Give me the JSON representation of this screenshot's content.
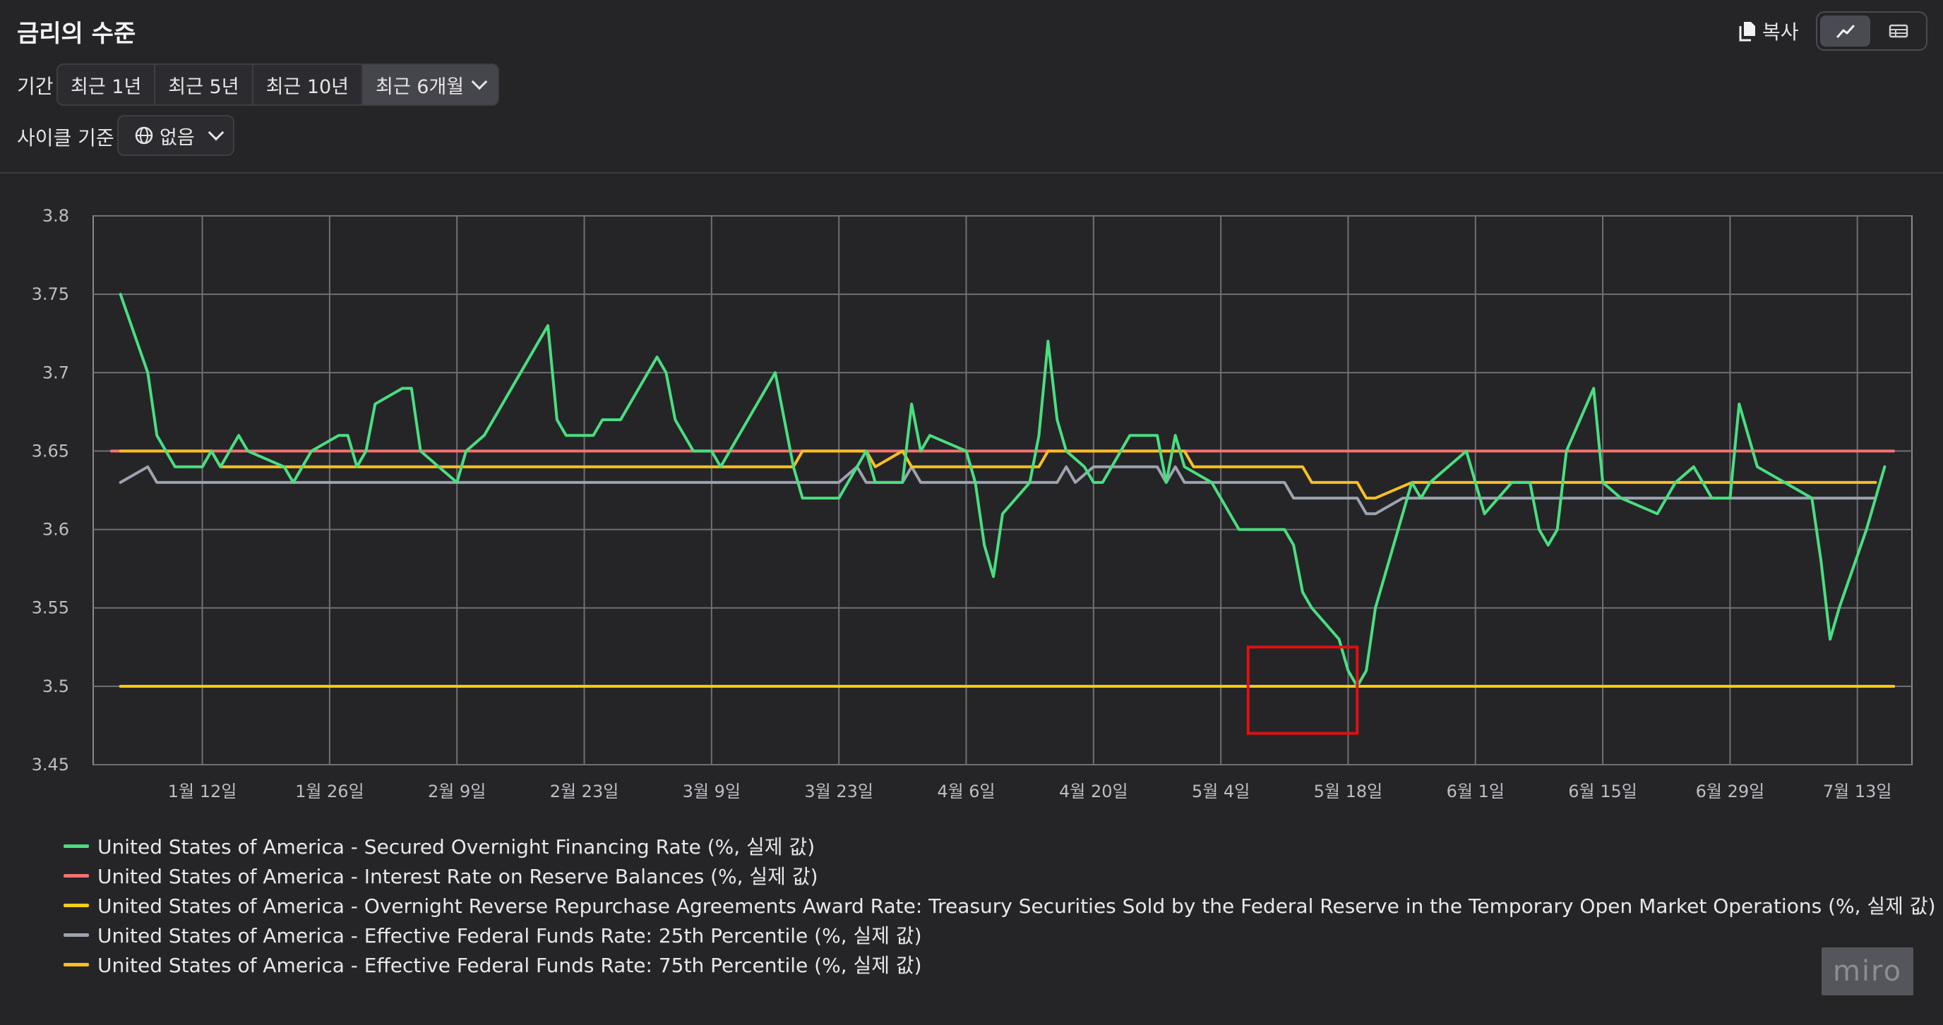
{
  "header": {
    "title": "금리의 수준",
    "copy_label": "복사"
  },
  "period": {
    "label": "기간",
    "options": [
      "최근 1년",
      "최근 5년",
      "최근 10년",
      "최근 6개월"
    ],
    "selected": "최근 6개월"
  },
  "cycle": {
    "label": "사이클 기준",
    "value": "없음"
  },
  "colors": {
    "sofr": "#4ade80",
    "iorb": "#f87171",
    "onrrp": "#facc15",
    "p25": "#9ca3af",
    "p75": "#fbbf24",
    "highlight_box": "#e01010"
  },
  "chart_data": {
    "type": "line",
    "x_tick_labels": [
      "1월 12일",
      "1월 26일",
      "2월 9일",
      "2월 23일",
      "3월 9일",
      "3월 23일",
      "4월 6일",
      "4월 20일",
      "5월 4일",
      "5월 18일",
      "6월 1일",
      "6월 15일",
      "6월 29일",
      "7월 13일"
    ],
    "x_tick_days": [
      12,
      26,
      40,
      54,
      68,
      82,
      96,
      110,
      124,
      138,
      152,
      166,
      180,
      194
    ],
    "x_range_days": [
      0,
      200
    ],
    "ylim": [
      3.45,
      3.8
    ],
    "y_ticks": [
      "3.8",
      "3.75",
      "3.7",
      "3.65",
      "3.6",
      "3.55",
      "3.5",
      "3.45"
    ],
    "grid": true,
    "legend": "bottom",
    "highlight_region": {
      "x_days": [
        127,
        139
      ],
      "y": [
        3.47,
        3.525
      ]
    },
    "series": [
      {
        "name": "United States of America - Secured Overnight Financing Rate (%, 실제 값)",
        "color_key": "sofr",
        "points": [
          [
            3,
            3.75
          ],
          [
            6,
            3.7
          ],
          [
            7,
            3.66
          ],
          [
            9,
            3.64
          ],
          [
            12,
            3.64
          ],
          [
            13,
            3.65
          ],
          [
            14,
            3.64
          ],
          [
            16,
            3.66
          ],
          [
            17,
            3.65
          ],
          [
            21,
            3.64
          ],
          [
            22,
            3.63
          ],
          [
            24,
            3.65
          ],
          [
            27,
            3.66
          ],
          [
            28,
            3.66
          ],
          [
            29,
            3.64
          ],
          [
            30,
            3.65
          ],
          [
            31,
            3.68
          ],
          [
            34,
            3.69
          ],
          [
            35,
            3.69
          ],
          [
            36,
            3.65
          ],
          [
            38,
            3.64
          ],
          [
            40,
            3.63
          ],
          [
            41,
            3.65
          ],
          [
            43,
            3.66
          ],
          [
            48,
            3.71
          ],
          [
            50,
            3.73
          ],
          [
            51,
            3.67
          ],
          [
            52,
            3.66
          ],
          [
            55,
            3.66
          ],
          [
            56,
            3.67
          ],
          [
            58,
            3.67
          ],
          [
            62,
            3.71
          ],
          [
            63,
            3.7
          ],
          [
            64,
            3.67
          ],
          [
            66,
            3.65
          ],
          [
            68,
            3.65
          ],
          [
            69,
            3.64
          ],
          [
            70,
            3.65
          ],
          [
            75,
            3.7
          ],
          [
            77,
            3.64
          ],
          [
            78,
            3.62
          ],
          [
            82,
            3.62
          ],
          [
            85,
            3.65
          ],
          [
            86,
            3.63
          ],
          [
            87,
            3.63
          ],
          [
            89,
            3.63
          ],
          [
            90,
            3.68
          ],
          [
            91,
            3.65
          ],
          [
            92,
            3.66
          ],
          [
            96,
            3.65
          ],
          [
            97,
            3.63
          ],
          [
            98,
            3.59
          ],
          [
            99,
            3.57
          ],
          [
            100,
            3.61
          ],
          [
            103,
            3.63
          ],
          [
            104,
            3.66
          ],
          [
            105,
            3.72
          ],
          [
            106,
            3.67
          ],
          [
            107,
            3.65
          ],
          [
            109,
            3.64
          ],
          [
            110,
            3.63
          ],
          [
            111,
            3.63
          ],
          [
            114,
            3.66
          ],
          [
            117,
            3.66
          ],
          [
            118,
            3.63
          ],
          [
            119,
            3.66
          ],
          [
            120,
            3.64
          ],
          [
            123,
            3.63
          ],
          [
            126,
            3.6
          ],
          [
            131,
            3.6
          ],
          [
            132,
            3.59
          ],
          [
            133,
            3.56
          ],
          [
            134,
            3.55
          ],
          [
            137,
            3.53
          ],
          [
            138,
            3.51
          ],
          [
            139,
            3.5
          ],
          [
            140,
            3.51
          ],
          [
            141,
            3.55
          ],
          [
            145,
            3.63
          ],
          [
            146,
            3.62
          ],
          [
            147,
            3.63
          ],
          [
            151,
            3.65
          ],
          [
            153,
            3.61
          ],
          [
            156,
            3.63
          ],
          [
            158,
            3.63
          ],
          [
            159,
            3.6
          ],
          [
            160,
            3.59
          ],
          [
            161,
            3.6
          ],
          [
            162,
            3.65
          ],
          [
            165,
            3.69
          ],
          [
            166,
            3.63
          ],
          [
            168,
            3.62
          ],
          [
            172,
            3.61
          ],
          [
            174,
            3.63
          ],
          [
            176,
            3.64
          ],
          [
            178,
            3.62
          ],
          [
            180,
            3.62
          ],
          [
            181,
            3.68
          ],
          [
            183,
            3.64
          ],
          [
            189,
            3.62
          ],
          [
            190,
            3.58
          ],
          [
            191,
            3.53
          ],
          [
            192,
            3.55
          ],
          [
            195,
            3.6
          ],
          [
            197,
            3.64
          ]
        ]
      },
      {
        "name": "United States of America - Interest Rate on Reserve Balances (%, 실제 값)",
        "color_key": "iorb",
        "points": [
          [
            2,
            3.65
          ],
          [
            198,
            3.65
          ]
        ]
      },
      {
        "name": "United States of America - Overnight Reverse Repurchase Agreements Award Rate: Treasury Securities Sold by the Federal Reserve in the Temporary Open Market Operations (%, 실제 값)",
        "color_key": "onrrp",
        "points": [
          [
            3,
            3.5
          ],
          [
            198,
            3.5
          ]
        ]
      },
      {
        "name": "United States of America - Effective Federal Funds Rate: 25th Percentile (%, 실제 값)",
        "color_key": "p25",
        "points": [
          [
            3,
            3.63
          ],
          [
            6,
            3.64
          ],
          [
            7,
            3.63
          ],
          [
            77,
            3.63
          ],
          [
            82,
            3.63
          ],
          [
            84,
            3.64
          ],
          [
            85,
            3.63
          ],
          [
            89,
            3.63
          ],
          [
            90,
            3.64
          ],
          [
            91,
            3.63
          ],
          [
            106,
            3.63
          ],
          [
            107,
            3.64
          ],
          [
            108,
            3.63
          ],
          [
            110,
            3.64
          ],
          [
            117,
            3.64
          ],
          [
            118,
            3.63
          ],
          [
            119,
            3.64
          ],
          [
            120,
            3.63
          ],
          [
            131,
            3.63
          ],
          [
            132,
            3.62
          ],
          [
            139,
            3.62
          ],
          [
            140,
            3.61
          ],
          [
            141,
            3.61
          ],
          [
            144,
            3.62
          ],
          [
            196,
            3.62
          ]
        ]
      },
      {
        "name": "United States of America - Effective Federal Funds Rate: 75th Percentile (%, 실제 값)",
        "color_key": "p75",
        "points": [
          [
            3,
            3.65
          ],
          [
            13,
            3.65
          ],
          [
            14,
            3.64
          ],
          [
            77,
            3.64
          ],
          [
            78,
            3.65
          ],
          [
            85,
            3.65
          ],
          [
            86,
            3.64
          ],
          [
            89,
            3.65
          ],
          [
            90,
            3.64
          ],
          [
            104,
            3.64
          ],
          [
            105,
            3.65
          ],
          [
            120,
            3.65
          ],
          [
            121,
            3.64
          ],
          [
            133,
            3.64
          ],
          [
            134,
            3.63
          ],
          [
            139,
            3.63
          ],
          [
            140,
            3.62
          ],
          [
            141,
            3.62
          ],
          [
            145,
            3.63
          ],
          [
            196,
            3.63
          ]
        ]
      }
    ]
  }
}
